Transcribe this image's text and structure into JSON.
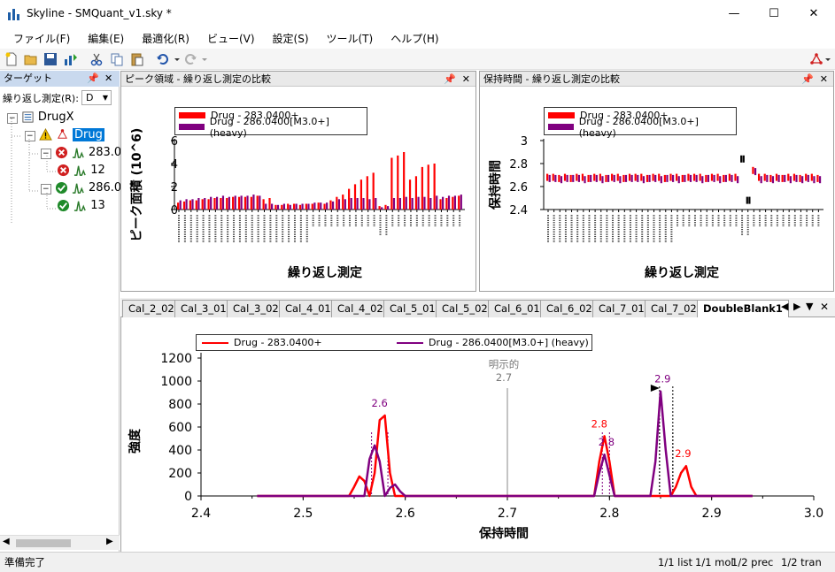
{
  "window": {
    "title": "Skyline - SMQuant_v1.sky *",
    "minimize_label": "—",
    "maximize_label": "☐",
    "close_label": "✕"
  },
  "menu": [
    "ファイル(F)",
    "編集(E)",
    "最適化(R)",
    "ビュー(V)",
    "設定(S)",
    "ツール(T)",
    "ヘルプ(H)"
  ],
  "targets": {
    "header": "ターゲット",
    "replicate_label": "繰り返し測定(R):",
    "replicate_value": "D",
    "tree": [
      {
        "label": "DrugX",
        "level": 0
      },
      {
        "label": "Drug",
        "level": 1
      },
      {
        "label": "283.0",
        "level": 2
      },
      {
        "label": "12",
        "level": 3
      },
      {
        "label": "286.0",
        "level": 2
      },
      {
        "label": "13",
        "level": 3
      }
    ]
  },
  "peak_area_pane": {
    "title": "ピーク領域 - 繰り返し測定の比較",
    "ylabel": "ピーク面積 (10^6)",
    "xlabel": "繰り返し測定",
    "legend": [
      "Drug - 283.0400+",
      "Drug - 286.0400[M3.0+] (heavy)"
    ],
    "ytick_labels": [
      "6",
      "4",
      "2",
      "0"
    ]
  },
  "retention_pane": {
    "title": "保持時間 - 繰り返し測定の比較",
    "ylabel": "保持時間",
    "xlabel": "繰り返し測定",
    "legend": [
      "Drug - 283.0400+",
      "Drug - 286.0400[M3.0+] (heavy)"
    ],
    "ytick_labels": [
      "3",
      "2.8",
      "2.6",
      "2.4"
    ]
  },
  "tabs": [
    "Cal_2_02",
    "Cal_3_01",
    "Cal_3_02",
    "Cal_4_01",
    "Cal_4_02",
    "Cal_5_01",
    "Cal_5_02",
    "Cal_6_01",
    "Cal_6_02",
    "Cal_7_01",
    "Cal_7_02",
    "DoubleBlank1"
  ],
  "active_tab": "DoubleBlank1",
  "chromatogram": {
    "legend": [
      "Drug - 283.0400+",
      "Drug - 286.0400[M3.0+] (heavy)"
    ],
    "annotation_explicit": "明示的",
    "annotation_explicit_value": "2.7",
    "peak_labels": [
      "2.6",
      "2.8",
      "2.8",
      "2.9",
      "2.9"
    ]
  },
  "colors": {
    "light": "#ff0000",
    "heavy": "#800080",
    "selection": "#3399ff"
  },
  "chart_data": [
    {
      "type": "bar",
      "title": "",
      "xlabel": "繰り返し測定",
      "ylabel": "ピーク面積 (10^6)",
      "ylim": [
        0,
        6
      ],
      "yticks": [
        0,
        2,
        4,
        6
      ],
      "series": [
        {
          "name": "Drug - 283.0400+",
          "values": [
            0.6,
            0.7,
            0.8,
            0.8,
            0.9,
            0.9,
            1.0,
            1.0,
            1.0,
            1.1,
            1.1,
            1.1,
            1.1,
            1.2,
            0.9,
            1.0,
            0.4,
            0.4,
            0.5,
            0.5,
            0.4,
            0.5,
            0.5,
            0.6,
            0.5,
            0.8,
            1.1,
            1.3,
            1.8,
            2.2,
            2.6,
            2.9,
            3.2,
            0.3,
            0.4,
            4.5,
            4.7,
            5.0,
            2.6,
            2.9,
            3.7,
            3.9,
            4.0,
            0.9,
            1.0,
            1.1,
            1.2
          ]
        },
        {
          "name": "Drug - 286.0400[M3.0+] (heavy)",
          "values": [
            0.8,
            0.9,
            0.9,
            1.0,
            1.0,
            1.1,
            1.1,
            1.2,
            1.1,
            1.2,
            1.2,
            1.2,
            1.3,
            1.2,
            0.5,
            0.5,
            0.4,
            0.5,
            0.4,
            0.5,
            0.5,
            0.5,
            0.6,
            0.6,
            0.6,
            0.7,
            0.9,
            0.9,
            1.0,
            1.0,
            1.0,
            0.9,
            1.0,
            0.2,
            0.3,
            1.0,
            1.0,
            1.1,
            1.0,
            1.1,
            1.1,
            1.0,
            1.2,
            1.1,
            1.2,
            1.2,
            1.3
          ]
        }
      ]
    },
    {
      "type": "scatter",
      "title": "",
      "xlabel": "繰り返し測定",
      "ylabel": "保持時間",
      "ylim": [
        2.4,
        3.0
      ],
      "yticks": [
        2.4,
        2.6,
        2.8,
        3.0
      ],
      "series": [
        {
          "name": "Drug - 283.0400+",
          "values": [
            2.68,
            2.68,
            2.67,
            2.68,
            2.67,
            2.68,
            2.68,
            2.67,
            2.68,
            2.68,
            2.67,
            2.68,
            2.68,
            2.67,
            2.68,
            2.68,
            2.68,
            2.67,
            2.68,
            2.68,
            2.67,
            2.68,
            2.68,
            2.67,
            2.68,
            2.68,
            2.68,
            2.67,
            2.68,
            2.68,
            2.67,
            2.68,
            2.68,
            2.84,
            2.48,
            2.74,
            2.68,
            2.68,
            2.67,
            2.68,
            2.67,
            2.68,
            2.68,
            2.67,
            2.68,
            2.68,
            2.67
          ]
        },
        {
          "name": "Drug - 286.0400[M3.0+] (heavy)",
          "values": [
            2.67,
            2.67,
            2.66,
            2.67,
            2.67,
            2.67,
            2.66,
            2.67,
            2.67,
            2.66,
            2.67,
            2.67,
            2.66,
            2.67,
            2.67,
            2.67,
            2.66,
            2.67,
            2.67,
            2.66,
            2.67,
            2.67,
            2.66,
            2.67,
            2.67,
            2.67,
            2.66,
            2.67,
            2.67,
            2.66,
            2.67,
            2.67,
            2.66,
            2.84,
            2.48,
            2.73,
            2.66,
            2.67,
            2.66,
            2.67,
            2.67,
            2.66,
            2.67,
            2.66,
            2.67,
            2.66,
            2.66
          ]
        }
      ]
    },
    {
      "type": "line",
      "title": "",
      "xlabel": "保持時間",
      "ylabel": "強度",
      "xlim": [
        2.4,
        3.0
      ],
      "ylim": [
        0,
        1200
      ],
      "xticks": [
        2.4,
        2.5,
        2.6,
        2.7,
        2.8,
        2.9,
        3.0
      ],
      "yticks": [
        0,
        200,
        400,
        600,
        800,
        1000,
        1200
      ],
      "series": [
        {
          "name": "Drug - 283.0400+",
          "x": [
            2.455,
            2.545,
            2.55,
            2.555,
            2.56,
            2.565,
            2.57,
            2.575,
            2.58,
            2.585,
            2.59,
            2.6,
            2.785,
            2.79,
            2.795,
            2.8,
            2.805,
            2.81,
            2.85,
            2.86,
            2.865,
            2.87,
            2.875,
            2.88,
            2.885,
            2.94
          ],
          "y": [
            0,
            0,
            80,
            170,
            130,
            0,
            200,
            660,
            700,
            200,
            0,
            0,
            0,
            300,
            520,
            300,
            0,
            0,
            0,
            0,
            80,
            200,
            260,
            80,
            0,
            0
          ]
        },
        {
          "name": "Drug - 286.0400[M3.0+] (heavy)",
          "x": [
            2.455,
            2.56,
            2.565,
            2.57,
            2.575,
            2.58,
            2.585,
            2.59,
            2.595,
            2.6,
            2.785,
            2.79,
            2.795,
            2.8,
            2.805,
            2.81,
            2.84,
            2.845,
            2.85,
            2.855,
            2.86,
            2.94
          ],
          "y": [
            0,
            0,
            320,
            440,
            300,
            0,
            70,
            100,
            40,
            0,
            0,
            200,
            360,
            180,
            0,
            0,
            0,
            300,
            910,
            400,
            0,
            0
          ]
        }
      ]
    }
  ],
  "status": {
    "left": "準備完了",
    "list": "1/1 list",
    "mol": "1/1 mol",
    "prec": "1/2 prec",
    "tran": "1/2 tran"
  }
}
